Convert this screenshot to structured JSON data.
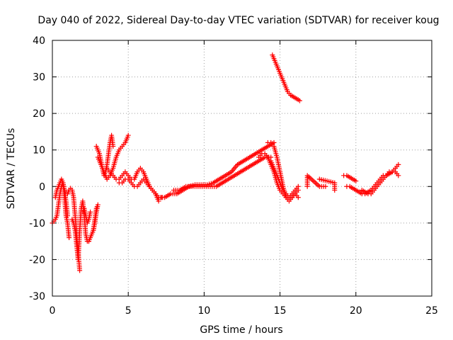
{
  "chart_data": {
    "type": "scatter",
    "title": "Day 040 of 2022, Sidereal Day-to-day VTEC variation (SDTVAR) for receiver koug",
    "xlabel": "GPS time / hours",
    "ylabel": "SDTVAR / TECUs",
    "xlim": [
      0,
      25
    ],
    "ylim": [
      -30,
      40
    ],
    "xticks": [
      0,
      5,
      10,
      15,
      20,
      25
    ],
    "yticks": [
      -30,
      -20,
      -10,
      0,
      10,
      20,
      30,
      40
    ],
    "xtick_labels": [
      "0",
      "5",
      "10",
      "15",
      "20",
      "25"
    ],
    "ytick_labels": [
      "-30",
      "-20",
      "-10",
      "0",
      "10",
      "20",
      "30",
      "40"
    ],
    "grid": true,
    "marker": "+",
    "color": "#ff0000",
    "series": [
      {
        "name": "s1",
        "x": [
          0.0,
          0.2,
          0.3,
          0.4,
          0.5,
          0.6,
          0.7,
          0.8,
          0.9,
          1.0,
          1.1
        ],
        "y": [
          -10,
          -9,
          -8,
          -5,
          -2,
          0,
          1,
          -3,
          -8,
          -10,
          -14
        ]
      },
      {
        "name": "s2",
        "x": [
          0.2,
          0.3,
          0.4,
          0.5,
          0.6,
          0.7,
          0.8,
          0.9,
          1.0
        ],
        "y": [
          -3,
          -1,
          0,
          1,
          2,
          1,
          -1,
          -4,
          -8
        ]
      },
      {
        "name": "s3",
        "x": [
          0.8,
          0.9,
          1.0,
          1.1,
          1.2,
          1.3,
          1.4,
          1.5,
          1.6,
          1.7,
          1.8
        ],
        "y": [
          -1,
          -1.5,
          -2,
          -1,
          -0.5,
          -1,
          -3,
          -8,
          -13,
          -18,
          -23
        ]
      },
      {
        "name": "s4",
        "x": [
          1.3,
          1.4,
          1.5,
          1.6,
          1.7,
          1.8,
          1.9,
          2.0,
          2.1,
          2.2,
          2.3,
          2.4
        ],
        "y": [
          -9,
          -10,
          -12,
          -16,
          -20,
          -12,
          -6,
          -4,
          -8,
          -13,
          -15,
          -15
        ]
      },
      {
        "name": "s5",
        "x": [
          2.4,
          2.5,
          2.6,
          2.7,
          2.8,
          2.9,
          3.0,
          2.9,
          2.8,
          2.7
        ],
        "y": [
          -15,
          -14,
          -13,
          -12,
          -10,
          -7,
          -5,
          -6,
          -9,
          -12
        ]
      },
      {
        "name": "s6",
        "x": [
          2.0,
          2.1,
          2.2,
          2.3,
          2.4,
          2.5
        ],
        "y": [
          -7,
          -6,
          -8,
          -10,
          -9,
          -7
        ]
      },
      {
        "name": "s7",
        "x": [
          2.9,
          3.0,
          3.1,
          3.2,
          3.3,
          3.4,
          3.5,
          3.6,
          3.7,
          3.8,
          3.9,
          4.0
        ],
        "y": [
          11,
          10,
          9,
          7,
          5,
          3,
          4,
          6,
          9,
          12,
          14,
          11
        ]
      },
      {
        "name": "s8",
        "x": [
          3.0,
          3.2,
          3.4,
          3.6,
          3.8,
          4.0,
          4.2,
          4.4,
          4.6,
          4.8,
          5.0
        ],
        "y": [
          8,
          6,
          4,
          2,
          3,
          5,
          8,
          10,
          11,
          12,
          14
        ]
      },
      {
        "name": "s9",
        "x": [
          3.6,
          3.8,
          4.0,
          4.2,
          4.4,
          4.6,
          4.8,
          5.0,
          5.2,
          5.4,
          5.6,
          5.8,
          6.0,
          6.2,
          6.4,
          6.6,
          6.8,
          7.0
        ],
        "y": [
          5,
          4,
          3,
          2,
          2,
          3,
          4,
          3,
          2,
          2,
          4,
          5,
          4,
          2,
          0,
          -1,
          -2,
          -4
        ]
      },
      {
        "name": "s10",
        "x": [
          4.4,
          4.6,
          4.8,
          5.0,
          5.2,
          5.4,
          5.6,
          5.8,
          6.0,
          6.2,
          6.4,
          6.6,
          6.8,
          7.0,
          7.2
        ],
        "y": [
          1,
          1,
          2,
          2,
          1,
          0,
          0,
          1,
          2,
          1,
          0,
          -1,
          -2,
          -3,
          -3
        ]
      },
      {
        "name": "s11",
        "x": [
          7.0,
          7.4,
          7.8,
          8.2,
          8.6,
          9.0,
          9.4,
          9.8,
          10.2,
          10.6,
          11.0,
          11.4,
          11.8,
          12.2,
          12.6,
          13.0,
          13.4,
          13.8,
          14.2,
          14.6
        ],
        "y": [
          -3,
          -3,
          -2,
          -2,
          -1,
          0,
          0.5,
          0.5,
          0.5,
          1,
          2,
          3,
          4,
          6,
          7,
          8,
          9,
          10,
          11,
          12
        ]
      },
      {
        "name": "s12",
        "x": [
          8.0,
          8.4,
          8.8,
          9.2,
          9.6,
          10.0,
          10.4,
          10.8,
          11.2,
          11.6,
          12.0,
          12.4,
          12.8,
          13.2,
          13.6,
          14.0,
          14.4
        ],
        "y": [
          -1,
          -1,
          0,
          0,
          0,
          0,
          0,
          0,
          1,
          2,
          3,
          4,
          5,
          6,
          7,
          8,
          8
        ]
      },
      {
        "name": "s13",
        "x": [
          14.2,
          14.4,
          14.6,
          14.8,
          15.0,
          15.2,
          15.4,
          15.6,
          15.8,
          16.0,
          16.2
        ],
        "y": [
          12,
          12,
          11,
          8,
          4,
          0,
          -3,
          -4,
          -3,
          -2,
          -1
        ]
      },
      {
        "name": "s14",
        "x": [
          13.6,
          13.8,
          14.0,
          14.2,
          14.4,
          14.6,
          14.8,
          15.0,
          15.2,
          15.4,
          15.6,
          15.8,
          16.0,
          16.2
        ],
        "y": [
          8,
          9,
          9,
          8,
          6,
          4,
          1,
          -1,
          -2,
          -3,
          -3,
          -2,
          -1,
          0
        ]
      },
      {
        "name": "s15",
        "x": [
          14.4,
          14.6,
          14.8,
          15.0,
          15.2,
          15.4,
          15.6,
          15.8,
          16.0,
          16.2
        ],
        "y": [
          7,
          5,
          3,
          1,
          -1,
          -2,
          -3,
          -3,
          -2,
          -3
        ]
      },
      {
        "name": "s16",
        "x": [
          14.5,
          14.7,
          14.9,
          15.1,
          15.3,
          15.5,
          15.7,
          15.9,
          16.1,
          16.3
        ],
        "y": [
          36,
          34,
          32,
          30,
          28,
          26,
          25,
          24.5,
          24,
          23.5
        ]
      },
      {
        "name": "s17",
        "x": [
          16.8,
          16.8,
          16.8,
          17.6,
          18.0
        ],
        "y": [
          0,
          2,
          3,
          0,
          0
        ]
      },
      {
        "name": "s18",
        "x": [
          17.6,
          18.6,
          18.6
        ],
        "y": [
          2,
          1,
          -1
        ]
      },
      {
        "name": "s19",
        "x": [
          19.4,
          19.6,
          19.8,
          20.0,
          20.2,
          20.4,
          20.6,
          20.8,
          21.0,
          21.2,
          21.4,
          21.6,
          21.8,
          22.0,
          22.2,
          22.4,
          22.6,
          22.8
        ],
        "y": [
          0,
          0,
          -0.5,
          -1,
          -1.5,
          -2,
          -2,
          -1.5,
          -1,
          0,
          1,
          2,
          3,
          3,
          4,
          4,
          5,
          6
        ]
      },
      {
        "name": "s20",
        "x": [
          19.2,
          19.4,
          19.6,
          19.8,
          20.0
        ],
        "y": [
          3,
          3,
          2.5,
          2,
          1.5
        ]
      },
      {
        "name": "s21",
        "x": [
          20.4,
          20.6,
          20.8,
          21.0,
          21.2,
          21.4,
          21.6,
          21.8,
          22.0,
          22.2,
          22.4,
          22.6,
          22.8
        ],
        "y": [
          -1,
          -1.5,
          -2,
          -2,
          -1,
          0,
          1,
          2,
          3,
          3.5,
          4,
          4,
          3
        ]
      }
    ]
  }
}
